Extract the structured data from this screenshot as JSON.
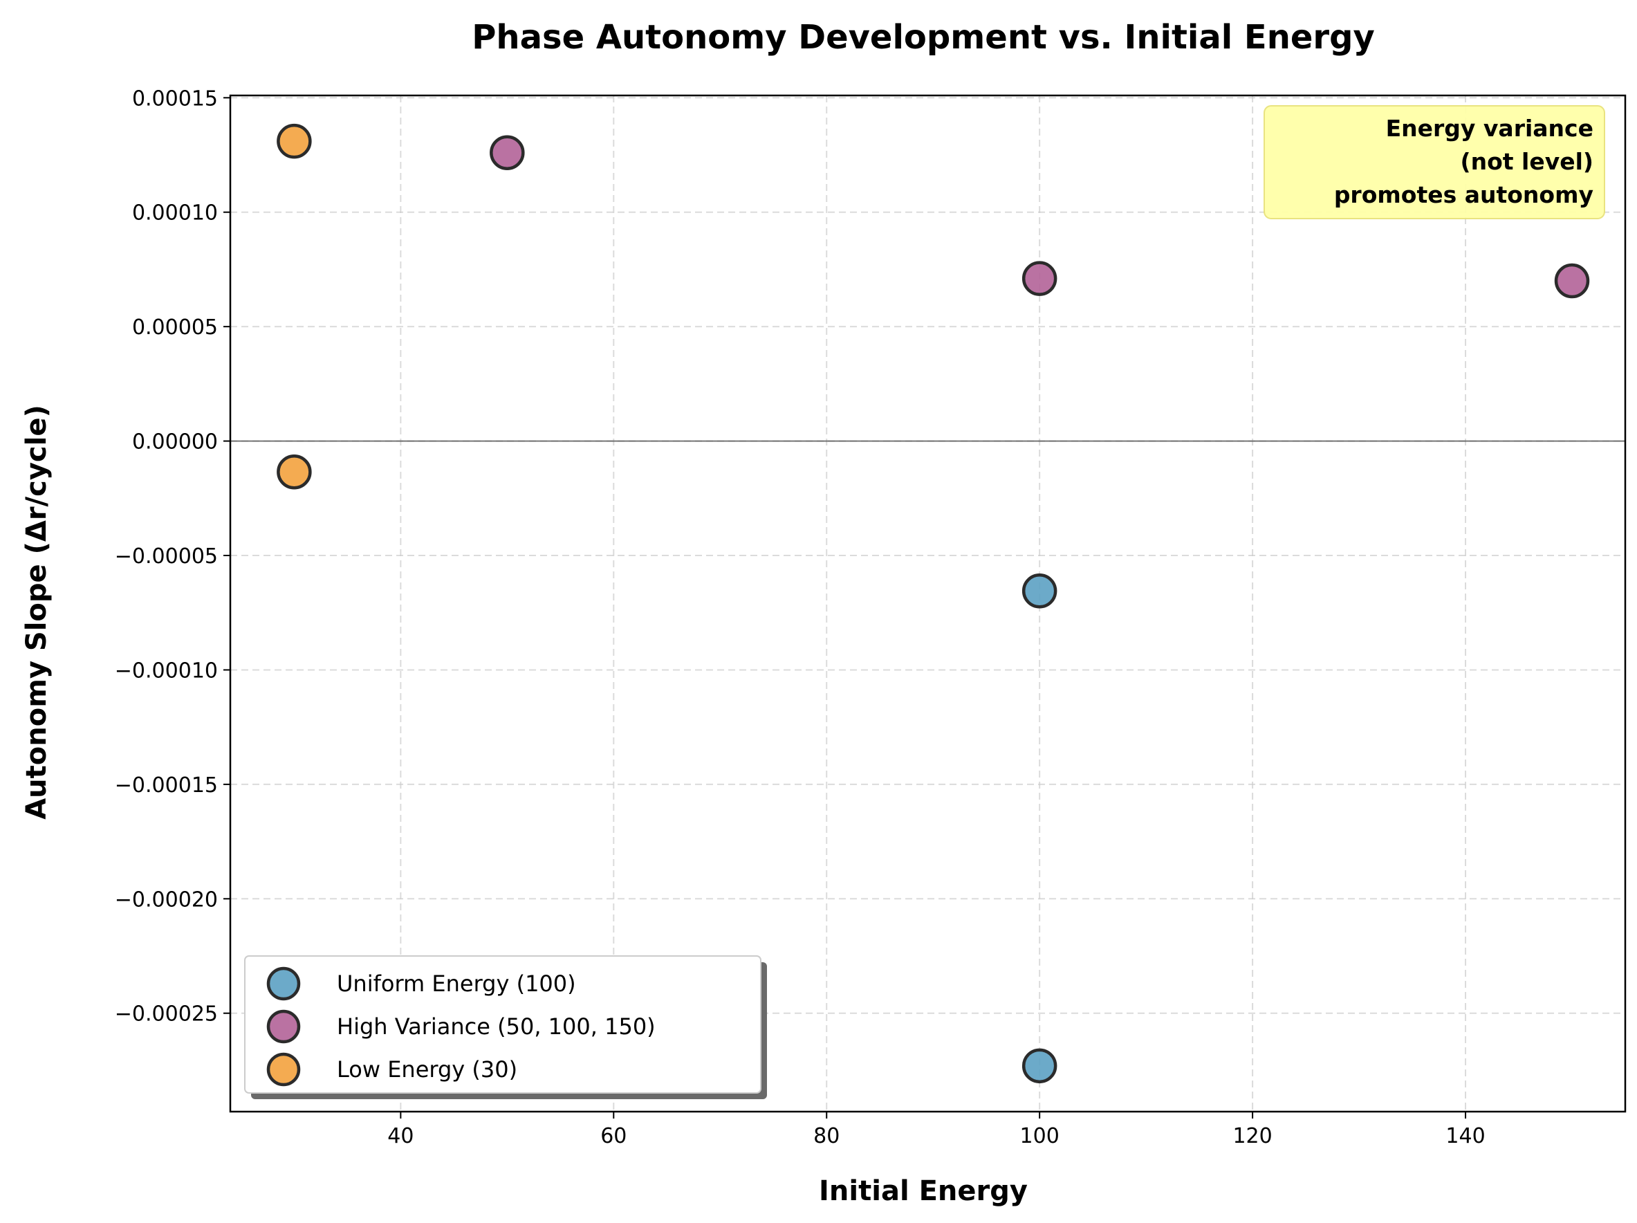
{
  "chart_data": {
    "type": "scatter",
    "title": "Phase Autonomy Development vs. Initial Energy",
    "xlabel": "Initial Energy",
    "ylabel": "Autonomy Slope (Δr/cycle)",
    "xlim": [
      24,
      155
    ],
    "ylim": [
      -0.000293,
      0.000151
    ],
    "xticks": [
      40,
      60,
      80,
      100,
      120,
      140
    ],
    "yticks": [
      0.00015,
      0.0001,
      5e-05,
      0.0,
      -5e-05,
      -0.0001,
      -0.00015,
      -0.0002,
      -0.00025
    ],
    "ytick_labels": [
      "0.00015",
      "0.00010",
      "0.00005",
      "0.00000",
      "−0.00005",
      "−0.00010",
      "−0.00015",
      "−0.00020",
      "−0.00025"
    ],
    "grid": true,
    "zero_line": true,
    "legend_position": "lower-left",
    "series": [
      {
        "name": "Uniform Energy (100)",
        "color": "#5fa3c4",
        "points": [
          [
            100,
            -6.55e-05
          ],
          [
            100,
            -0.000273
          ]
        ]
      },
      {
        "name": "High Variance (50, 100, 150)",
        "color": "#b4669a",
        "points": [
          [
            50,
            0.000126
          ],
          [
            100,
            7.1e-05
          ],
          [
            150,
            7e-05
          ]
        ]
      },
      {
        "name": "Low Energy (30)",
        "color": "#f3a442",
        "points": [
          [
            30,
            0.000131
          ],
          [
            30,
            -1.35e-05
          ]
        ]
      }
    ],
    "annotation": {
      "lines": [
        "Energy variance",
        "(not level)",
        "promotes autonomy"
      ],
      "position": "top-right",
      "background": "#ffffa8"
    }
  }
}
